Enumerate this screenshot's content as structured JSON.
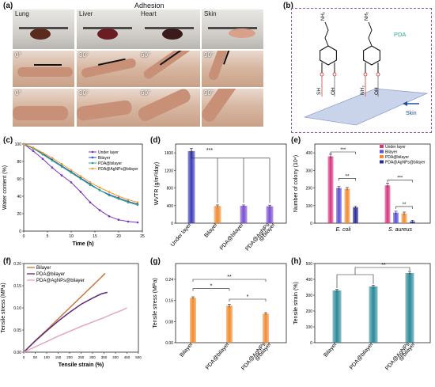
{
  "panels": {
    "a": "(a)",
    "b": "(b)",
    "c": "(c)",
    "d": "(d)",
    "e": "(e)",
    "f": "(f)",
    "g": "(g)",
    "h": "(h)"
  },
  "panel_a": {
    "title": "Adhesion",
    "organs": [
      "Lung",
      "Liver",
      "Heart",
      "Skin"
    ],
    "angles_row1": [
      "0°",
      "30°",
      "60°",
      "90°"
    ],
    "angles_row2": [
      "0°",
      "30°",
      "60°",
      "90°"
    ]
  },
  "panel_b": {
    "pda": "PDA",
    "skin": "Skin",
    "nh2": "NH₂",
    "groups": [
      "SH",
      "OH",
      "NH₂",
      "OH"
    ],
    "colors": {
      "border": "#8a5ca8",
      "surface": "#c9d3ea",
      "bond": "#d9534f",
      "arrow": "#1f4e9c"
    }
  },
  "chart_data": [
    {
      "id": "c",
      "type": "line",
      "xlabel": "Time (h)",
      "ylabel": "Water content (%)",
      "xlim": [
        0,
        25
      ],
      "ylim": [
        0,
        100
      ],
      "xticks": [
        0,
        5,
        10,
        15,
        20,
        25
      ],
      "yticks": [
        0,
        20,
        40,
        60,
        80,
        100
      ],
      "x": [
        0,
        2,
        4,
        6,
        8,
        10,
        12,
        14,
        16,
        18,
        20,
        22,
        24
      ],
      "series": [
        {
          "name": "Under layer",
          "color": "#7b2fbf",
          "values": [
            100,
            92,
            83,
            73,
            64,
            56,
            45,
            33,
            24,
            17,
            13,
            11,
            10
          ]
        },
        {
          "name": "Bilayer",
          "color": "#2b4fb5",
          "values": [
            100,
            95,
            89,
            82,
            75,
            68,
            61,
            54,
            47,
            42,
            38,
            34,
            31
          ]
        },
        {
          "name": "PDA@bilayer",
          "color": "#2aa58a",
          "values": [
            100,
            95,
            88,
            81,
            74,
            67,
            60,
            53,
            47,
            41,
            37,
            33,
            30
          ]
        },
        {
          "name": "PDA@AgNPs@bilayer",
          "color": "#e89a2e",
          "values": [
            100,
            96,
            90,
            84,
            77,
            70,
            63,
            56,
            50,
            45,
            40,
            36,
            33
          ]
        }
      ]
    },
    {
      "id": "d",
      "type": "bar",
      "ylabel": "WVTR (g/m²/day)",
      "ylim": [
        0,
        1800
      ],
      "yticks": [
        0,
        400,
        800,
        1200,
        1600
      ],
      "categories": [
        "Under layer",
        "Bilayer",
        "PDA@bilayer",
        "PDA@AgNPs\n@bilayer"
      ],
      "category_lines": [
        [
          "Under layer"
        ],
        [
          "Bilayer"
        ],
        [
          "PDA@bilayer"
        ],
        [
          "PDA@AgNPs",
          "@bilayer"
        ]
      ],
      "values": [
        1640,
        390,
        395,
        385
      ],
      "errors": [
        60,
        25,
        20,
        25
      ],
      "colors": [
        "#3b3bb8",
        "#f28a2e",
        "#7b4fd0",
        "#7b4fd0"
      ],
      "significance": "***"
    },
    {
      "id": "e",
      "type": "bar",
      "ylabel": "Number of colony (10⁴)",
      "ylim": [
        0,
        450
      ],
      "yticks": [
        0,
        100,
        200,
        300,
        400
      ],
      "categories": [
        "E. coli",
        "S. aureus"
      ],
      "series": [
        {
          "name": "Under layer",
          "color": "#d8377f",
          "values": [
            380,
            215
          ]
        },
        {
          "name": "Bilayer",
          "color": "#5b4fd6",
          "values": [
            200,
            60
          ]
        },
        {
          "name": "PDA@bilayer",
          "color": "#f28a2e",
          "values": [
            195,
            55
          ]
        },
        {
          "name": "PDA@AgNPs@bilayer",
          "color": "#2a2a9a",
          "values": [
            90,
            10
          ]
        }
      ],
      "significance": [
        "***",
        "**",
        "***",
        "**"
      ]
    },
    {
      "id": "f",
      "type": "line",
      "xlabel": "Tensile strain (%)",
      "ylabel": "Tensile stress (MPa)",
      "xlim": [
        0,
        500
      ],
      "ylim": [
        0,
        0.2
      ],
      "xticks": [
        0,
        50,
        100,
        150,
        200,
        250,
        300,
        350,
        400,
        450,
        500
      ],
      "yticks": [
        0.0,
        0.05,
        0.1,
        0.15,
        0.2
      ],
      "series": [
        {
          "name": "Bilayer",
          "color": "#c8743a",
          "x": [
            0,
            50,
            100,
            150,
            200,
            250,
            300,
            340,
            355
          ],
          "y": [
            0,
            0.026,
            0.05,
            0.075,
            0.1,
            0.125,
            0.15,
            0.17,
            0.178
          ]
        },
        {
          "name": "PDA@bilayer",
          "color": "#5a2a7a",
          "x": [
            0,
            50,
            100,
            150,
            200,
            250,
            300,
            340,
            365
          ],
          "y": [
            0,
            0.025,
            0.048,
            0.07,
            0.09,
            0.108,
            0.122,
            0.132,
            0.135
          ]
        },
        {
          "name": "PDA@AgNPs@bilayer",
          "color": "#e6a7b8",
          "x": [
            0,
            50,
            100,
            150,
            200,
            250,
            300,
            350,
            400,
            430,
            450
          ],
          "y": [
            0,
            0.012,
            0.024,
            0.036,
            0.047,
            0.058,
            0.068,
            0.078,
            0.089,
            0.095,
            0.1
          ]
        }
      ]
    },
    {
      "id": "g",
      "type": "bar",
      "ylabel": "Tensile stress (MPa)",
      "ylim": [
        0,
        0.3
      ],
      "yticks": [
        0.0,
        0.08,
        0.16,
        0.24
      ],
      "categories": [
        "Bilayer",
        "PDA@bilayer",
        "PDA@AgNPs\n@bilayer"
      ],
      "category_lines": [
        [
          "Bilayer"
        ],
        [
          "PDA@bilayer"
        ],
        [
          "PDA@AgNPs",
          "@bilayer"
        ]
      ],
      "values": [
        0.17,
        0.14,
        0.11
      ],
      "errors": [
        0.004,
        0.006,
        0.004
      ],
      "colors": [
        "#f28a2e",
        "#f28a2e",
        "#f28a2e"
      ],
      "significance": [
        "*",
        "**",
        "*"
      ]
    },
    {
      "id": "h",
      "type": "bar",
      "ylabel": "Tensile strain (%)",
      "ylim": [
        0,
        500
      ],
      "yticks": [
        0,
        100,
        200,
        300,
        400,
        500
      ],
      "categories": [
        "Bilayer",
        "PDA@bilayer",
        "PDA@AgNPs\n@bilayer"
      ],
      "category_lines": [
        [
          "Bilayer"
        ],
        [
          "PDA@bilayer"
        ],
        [
          "PDA@AgNPs",
          "@bilayer"
        ]
      ],
      "values": [
        330,
        355,
        440
      ],
      "errors": [
        8,
        8,
        10
      ],
      "colors": [
        "#2a8a9a",
        "#2a8a9a",
        "#2a8a9a"
      ],
      "significance": [
        "**"
      ]
    }
  ]
}
